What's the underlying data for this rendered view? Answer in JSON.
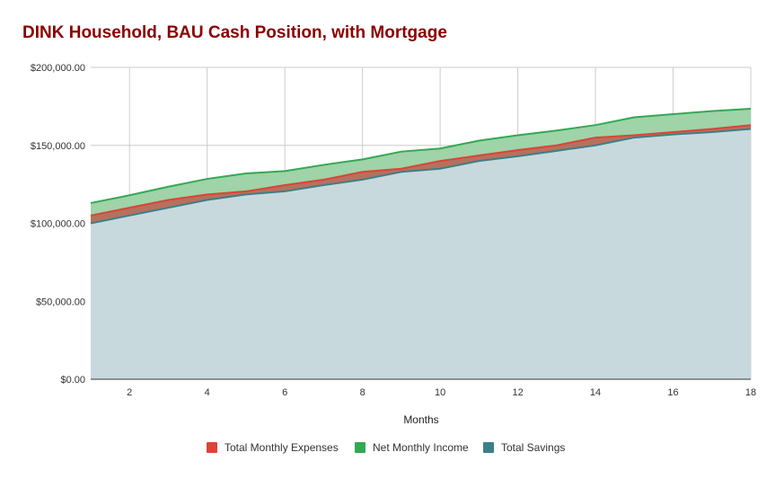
{
  "chart_data": {
    "type": "area",
    "title": "DINK Household, BAU Cash Position, with Mortgage",
    "xlabel": "Months",
    "ylabel": "",
    "x": [
      1,
      2,
      3,
      4,
      5,
      6,
      7,
      8,
      9,
      10,
      11,
      12,
      13,
      14,
      15,
      16,
      17,
      18
    ],
    "x_ticks": [
      2,
      4,
      6,
      8,
      10,
      12,
      14,
      16,
      18
    ],
    "y_ticks": [
      "$0.00",
      "$50,000.00",
      "$100,000.00",
      "$150,000.00",
      "$200,000.00"
    ],
    "y_tick_values": [
      0,
      50000,
      100000,
      150000,
      200000
    ],
    "xlim": [
      1,
      18
    ],
    "ylim": [
      0,
      200000
    ],
    "grid": true,
    "legend_position": "bottom",
    "series": [
      {
        "name": "Total Monthly Expenses",
        "color": "#db4437",
        "fill": "#b5715e",
        "values": [
          105000,
          110000,
          115000,
          118500,
          120500,
          124500,
          128000,
          133000,
          135000,
          140000,
          143500,
          147000,
          150000,
          155000,
          156500,
          158500,
          160500,
          163000
        ]
      },
      {
        "name": "Net Monthly Income",
        "color": "#34a853",
        "fill": "#9fd3a8",
        "values": [
          113000,
          118000,
          123500,
          128500,
          132000,
          133500,
          137500,
          141000,
          146000,
          148000,
          153000,
          156500,
          159500,
          163000,
          168000,
          170000,
          172000,
          173500
        ]
      },
      {
        "name": "Total Savings",
        "color": "#3d7f87",
        "fill": "#c8d9dd",
        "values": [
          100000,
          105000,
          110000,
          115000,
          118500,
          120500,
          124500,
          128000,
          133000,
          135000,
          140000,
          143000,
          146500,
          150000,
          155000,
          157000,
          158500,
          160500
        ]
      }
    ]
  }
}
